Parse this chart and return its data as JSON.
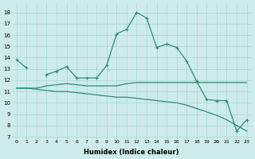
{
  "x": [
    0,
    1,
    2,
    3,
    4,
    5,
    6,
    7,
    8,
    9,
    10,
    11,
    12,
    13,
    14,
    15,
    16,
    17,
    18,
    19,
    20,
    21,
    22,
    23
  ],
  "series": {
    "main": [
      13.8,
      13.1,
      null,
      12.5,
      12.8,
      13.2,
      12.2,
      12.2,
      12.2,
      13.3,
      16.1,
      16.5,
      18.0,
      17.5,
      14.9,
      15.2,
      14.9,
      13.7,
      11.9,
      10.3,
      10.2,
      10.2,
      7.5,
      8.5
    ],
    "middle": [
      11.3,
      11.3,
      11.3,
      11.5,
      11.6,
      11.7,
      11.6,
      11.5,
      11.5,
      11.5,
      11.5,
      11.7,
      11.8,
      11.8,
      11.8,
      11.8,
      11.8,
      11.8,
      11.8,
      11.8,
      11.8,
      11.8,
      11.8,
      11.8
    ],
    "bottom": [
      11.3,
      11.3,
      11.2,
      11.1,
      11.0,
      11.0,
      10.9,
      10.8,
      10.7,
      10.6,
      10.5,
      10.5,
      10.4,
      10.3,
      10.2,
      10.1,
      10.0,
      9.8,
      9.5,
      9.2,
      8.9,
      8.5,
      8.0,
      7.5
    ]
  },
  "color": "#2e8b78",
  "bg_color": "#ceecea",
  "grid_color": "#a8d8d4",
  "xlabel": "Humidex (Indice chaleur)",
  "ylabel_ticks": [
    7,
    8,
    9,
    10,
    11,
    12,
    13,
    14,
    15,
    16,
    17,
    18
  ],
  "ylim": [
    6.8,
    18.8
  ],
  "xlim": [
    -0.5,
    23.5
  ]
}
